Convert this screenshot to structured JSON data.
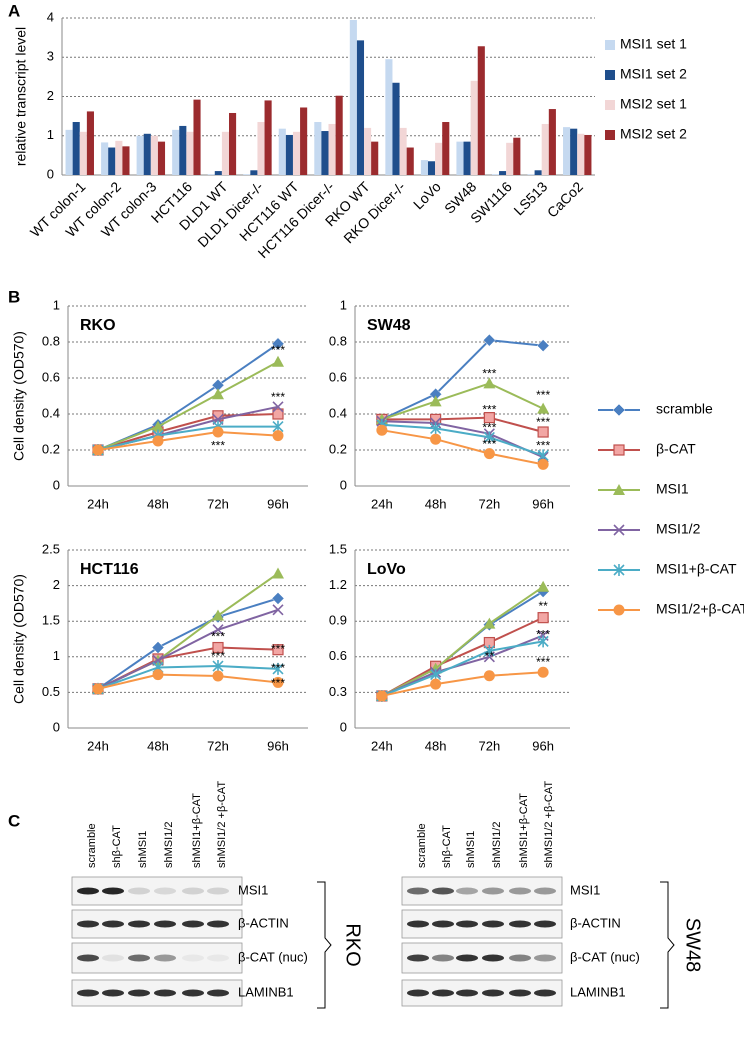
{
  "panel_labels": [
    "A",
    "B",
    "C"
  ],
  "chart_data": [
    {
      "type": "bar",
      "ylabel": "relative transcript level",
      "categories": [
        "WT colon-1",
        "WT colon-2",
        "WT colon-3",
        "HCT116",
        "DLD1 WT",
        "DLD1 Dicer-/-",
        "HCT116 WT",
        "HCT116 Dicer-/-",
        "RKO WT",
        "RKO Dicer-/-",
        "LoVo",
        "SW48",
        "SW1116",
        "LS513",
        "CaCo2"
      ],
      "series": [
        {
          "name": "MSI1 set 1",
          "color": "#c5d9f0",
          "values": [
            1.15,
            0.83,
            1.0,
            1.15,
            0.02,
            0.02,
            1.18,
            1.35,
            3.95,
            2.95,
            0.38,
            0.85,
            0.02,
            0.02,
            1.22
          ]
        },
        {
          "name": "MSI1 set 2",
          "color": "#1f4e8c",
          "values": [
            1.35,
            0.7,
            1.05,
            1.25,
            0.1,
            0.12,
            1.02,
            1.12,
            3.43,
            2.35,
            0.35,
            0.85,
            0.1,
            0.12,
            1.18
          ]
        },
        {
          "name": "MSI2 set 1",
          "color": "#f2d6d6",
          "values": [
            1.1,
            0.87,
            1.0,
            1.1,
            1.1,
            1.35,
            1.1,
            1.3,
            1.2,
            1.2,
            0.82,
            2.4,
            0.82,
            1.3,
            1.05
          ]
        },
        {
          "name": "MSI2 set 2",
          "color": "#9b2b2e",
          "values": [
            1.62,
            0.73,
            0.85,
            1.92,
            1.58,
            1.9,
            1.72,
            2.02,
            0.85,
            0.7,
            1.35,
            3.28,
            0.95,
            1.68,
            1.02
          ]
        }
      ],
      "ylim": [
        0,
        4
      ],
      "yticks": [
        0,
        1,
        2,
        3,
        4
      ],
      "grid": true,
      "legend": "right"
    },
    {
      "type": "line",
      "title": "RKO",
      "ylabel": "Cell density (OD570)",
      "categories": [
        "24h",
        "48h",
        "72h",
        "96h"
      ],
      "series": [
        {
          "name": "scramble",
          "color": "#4a7fc1",
          "marker": "diamond",
          "values": [
            0.2,
            0.34,
            0.56,
            0.79
          ]
        },
        {
          "name": "β-CAT",
          "color": "#c0504d",
          "marker": "square",
          "values": [
            0.2,
            0.3,
            0.39,
            0.4
          ]
        },
        {
          "name": "MSI1",
          "color": "#9bbb59",
          "marker": "triangle",
          "values": [
            0.2,
            0.33,
            0.51,
            0.69
          ]
        },
        {
          "name": "MSI1/2",
          "color": "#8064a2",
          "marker": "x",
          "values": [
            0.2,
            0.28,
            0.37,
            0.44
          ]
        },
        {
          "name": "MSI1+β-CAT",
          "color": "#4bacc6",
          "marker": "star",
          "values": [
            0.2,
            0.28,
            0.33,
            0.33
          ]
        },
        {
          "name": "MSI1/2+β-CAT",
          "color": "#f79646",
          "marker": "circle",
          "values": [
            0.2,
            0.25,
            0.3,
            0.28
          ]
        }
      ],
      "ylim": [
        0,
        1
      ],
      "yticks": [
        0,
        0.2,
        0.4,
        0.6,
        0.8,
        1
      ],
      "grid": true,
      "legend": "right",
      "annotations": [
        {
          "text": "***",
          "x": "96h",
          "y": 0.75
        },
        {
          "text": "***",
          "x": "96h",
          "y": 0.49
        },
        {
          "text": "***",
          "x": "72h",
          "y": 0.22
        }
      ]
    },
    {
      "type": "line",
      "title": "SW48",
      "categories": [
        "24h",
        "48h",
        "72h",
        "96h"
      ],
      "series": [
        {
          "name": "scramble",
          "color": "#4a7fc1",
          "marker": "diamond",
          "values": [
            0.37,
            0.51,
            0.81,
            0.78
          ]
        },
        {
          "name": "β-CAT",
          "color": "#c0504d",
          "marker": "square",
          "values": [
            0.37,
            0.37,
            0.38,
            0.3
          ]
        },
        {
          "name": "MSI1",
          "color": "#9bbb59",
          "marker": "triangle",
          "values": [
            0.37,
            0.47,
            0.57,
            0.43
          ]
        },
        {
          "name": "MSI1/2",
          "color": "#8064a2",
          "marker": "x",
          "values": [
            0.36,
            0.35,
            0.29,
            0.16
          ]
        },
        {
          "name": "MSI1+β-CAT",
          "color": "#4bacc6",
          "marker": "star",
          "values": [
            0.34,
            0.32,
            0.27,
            0.17
          ]
        },
        {
          "name": "MSI1/2+β-CAT",
          "color": "#f79646",
          "marker": "circle",
          "values": [
            0.31,
            0.26,
            0.18,
            0.12
          ]
        }
      ],
      "ylim": [
        0,
        1
      ],
      "yticks": [
        0,
        0.2,
        0.4,
        0.6,
        0.8,
        1
      ],
      "grid": true,
      "annotations": [
        {
          "text": "***",
          "x": "72h",
          "y": 0.62
        },
        {
          "text": "***",
          "x": "96h",
          "y": 0.5
        },
        {
          "text": "***",
          "x": "72h",
          "y": 0.42
        },
        {
          "text": "***",
          "x": "96h",
          "y": 0.35
        },
        {
          "text": "***",
          "x": "72h",
          "y": 0.32
        },
        {
          "text": "***",
          "x": "96h",
          "y": 0.22
        },
        {
          "text": "***",
          "x": "72h",
          "y": 0.23
        }
      ]
    },
    {
      "type": "line",
      "title": "HCT116",
      "ylabel": "Cell density (OD570)",
      "categories": [
        "24h",
        "48h",
        "72h",
        "96h"
      ],
      "series": [
        {
          "name": "scramble",
          "color": "#4a7fc1",
          "marker": "diamond",
          "values": [
            0.55,
            1.13,
            1.56,
            1.82
          ]
        },
        {
          "name": "β-CAT",
          "color": "#c0504d",
          "marker": "square",
          "values": [
            0.55,
            0.97,
            1.13,
            1.1
          ]
        },
        {
          "name": "MSI1",
          "color": "#9bbb59",
          "marker": "triangle",
          "values": [
            0.55,
            0.95,
            1.58,
            2.17
          ]
        },
        {
          "name": "MSI1/2",
          "color": "#8064a2",
          "marker": "x",
          "values": [
            0.55,
            0.95,
            1.38,
            1.66
          ]
        },
        {
          "name": "MSI1+β-CAT",
          "color": "#4bacc6",
          "marker": "star",
          "values": [
            0.55,
            0.85,
            0.87,
            0.83
          ]
        },
        {
          "name": "MSI1/2+β-CAT",
          "color": "#f79646",
          "marker": "circle",
          "values": [
            0.55,
            0.75,
            0.73,
            0.64
          ]
        }
      ],
      "ylim": [
        0,
        2.5
      ],
      "yticks": [
        0,
        0.5,
        1,
        1.5,
        2,
        2.5
      ],
      "grid": true,
      "annotations": [
        {
          "text": "***",
          "x": "72h",
          "y": 1.27
        },
        {
          "text": "***",
          "x": "72h",
          "y": 1.0
        },
        {
          "text": "***",
          "x": "96h",
          "y": 1.1
        },
        {
          "text": "***",
          "x": "96h",
          "y": 0.83
        },
        {
          "text": "***",
          "x": "96h",
          "y": 0.62
        }
      ]
    },
    {
      "type": "line",
      "title": "LoVo",
      "categories": [
        "24h",
        "48h",
        "72h",
        "96h"
      ],
      "series": [
        {
          "name": "scramble",
          "color": "#4a7fc1",
          "marker": "diamond",
          "values": [
            0.27,
            0.5,
            0.87,
            1.15
          ]
        },
        {
          "name": "β-CAT",
          "color": "#c0504d",
          "marker": "square",
          "values": [
            0.27,
            0.52,
            0.72,
            0.93
          ]
        },
        {
          "name": "MSI1",
          "color": "#9bbb59",
          "marker": "triangle",
          "values": [
            0.27,
            0.5,
            0.88,
            1.19
          ]
        },
        {
          "name": "MSI1/2",
          "color": "#8064a2",
          "marker": "x",
          "values": [
            0.27,
            0.47,
            0.6,
            0.78
          ]
        },
        {
          "name": "MSI1+β-CAT",
          "color": "#4bacc6",
          "marker": "star",
          "values": [
            0.27,
            0.45,
            0.65,
            0.73
          ]
        },
        {
          "name": "MSI1/2+β-CAT",
          "color": "#f79646",
          "marker": "circle",
          "values": [
            0.27,
            0.37,
            0.44,
            0.47
          ]
        }
      ],
      "ylim": [
        0,
        1.5
      ],
      "yticks": [
        0,
        0.3,
        0.6,
        0.9,
        1.2,
        1.5
      ],
      "grid": true,
      "annotations": [
        {
          "text": "**",
          "x": "96h",
          "y": 1.02
        },
        {
          "text": "**",
          "x": "72h",
          "y": 0.6
        },
        {
          "text": "***",
          "x": "96h",
          "y": 0.78
        },
        {
          "text": "***",
          "x": "96h",
          "y": 0.55
        }
      ]
    }
  ],
  "blots": [
    {
      "cell_line": "RKO",
      "lanes": [
        "scramble",
        "shβ-CAT",
        "shMSI1",
        "shMSI1/2",
        "shMSI1+β-CAT",
        "shMSI1/2 +β-CAT"
      ],
      "rows": [
        "MSI1",
        "β-ACTIN",
        "β-CAT (nuc)",
        "LAMINB1"
      ]
    },
    {
      "cell_line": "SW48",
      "lanes": [
        "scramble",
        "shβ-CAT",
        "shMSI1",
        "shMSI1/2",
        "shMSI1+β-CAT",
        "shMSI1/2 +β-CAT"
      ],
      "rows": [
        "MSI1",
        "β-ACTIN",
        "β-CAT (nuc)",
        "LAMINB1"
      ]
    }
  ]
}
